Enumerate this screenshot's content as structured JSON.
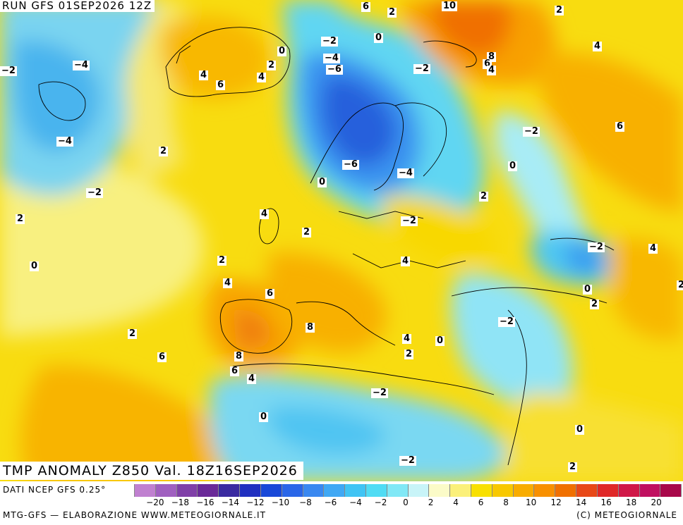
{
  "header": {
    "run_title": "RUN GFS 01SEP2026 12Z",
    "anomaly_title": "TMP ANOMALY Z850 Val. 18Z16SEP2026"
  },
  "footer": {
    "data_source": "DATI NCEP GFS 0.25°",
    "credit": "MTG-GFS — ELABORAZIONE WWW.METEOGIORNALE.IT",
    "copyright": "(C) METEOGIORNALE"
  },
  "legend": {
    "swatch_colors": [
      "#c080d0",
      "#a060c0",
      "#8040a8",
      "#6a2a98",
      "#3a2aa0",
      "#2030c0",
      "#1848d8",
      "#2a66e8",
      "#3a88f0",
      "#40a8f4",
      "#40c4f4",
      "#50dcf4",
      "#80e8f6",
      "#c8f4f8",
      "#fbfbc8",
      "#fbf07a",
      "#f8e000",
      "#f8c800",
      "#f8ac00",
      "#f89000",
      "#f07000",
      "#e84818",
      "#e02828",
      "#d01848",
      "#c01060",
      "#a8084a"
    ],
    "tick_labels": [
      "−20",
      "−18",
      "−16",
      "−14",
      "−12",
      "−10",
      "−8",
      "−6",
      "−4",
      "−2",
      "0",
      "2",
      "4",
      "6",
      "8",
      "10",
      "12",
      "14",
      "16",
      "18",
      "20"
    ]
  },
  "map": {
    "contour_labels": [
      "6",
      "2",
      "10",
      "2",
      "−4",
      "−2",
      "0",
      "−2",
      "0",
      "2",
      "4",
      "−4",
      "−6",
      "8",
      "6",
      "4",
      "−2",
      "4",
      "6",
      "4",
      "−4",
      "−2",
      "6",
      "2",
      "−6",
      "−4",
      "0",
      "−2",
      "0",
      "2",
      "4",
      "2",
      "−2",
      "2",
      "−2",
      "4",
      "0",
      "2",
      "4",
      "4",
      "6",
      "2",
      "0",
      "8",
      "−2",
      "4",
      "2",
      "6",
      "8",
      "0",
      "6",
      "2",
      "4",
      "2",
      "−2",
      "0",
      "−2",
      "2",
      "0"
    ]
  }
}
